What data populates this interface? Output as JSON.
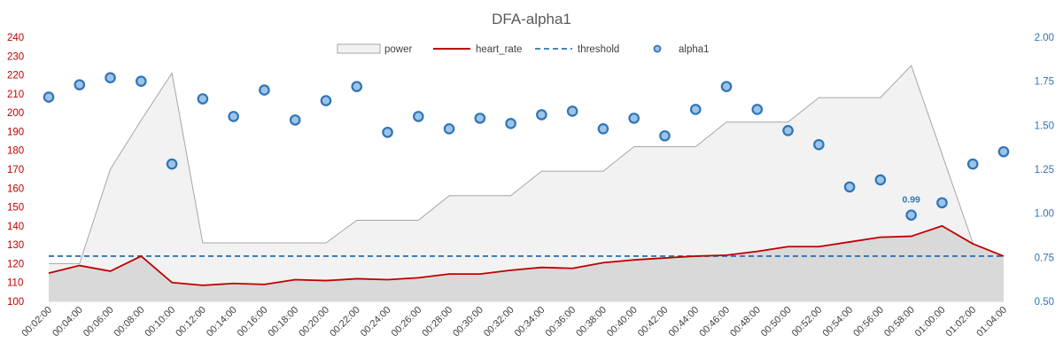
{
  "chart_data": {
    "type": "line",
    "title": "DFA-alpha1",
    "x": [
      "00:02:00",
      "00:04:00",
      "00:06:00",
      "00:08:00",
      "00:10:00",
      "00:12:00",
      "00:14:00",
      "00:16:00",
      "00:18:00",
      "00:20:00",
      "00:22:00",
      "00:24:00",
      "00:26:00",
      "00:28:00",
      "00:30:00",
      "00:32:00",
      "00:34:00",
      "00:36:00",
      "00:38:00",
      "00:40:00",
      "00:42:00",
      "00:44:00",
      "00:46:00",
      "00:48:00",
      "00:50:00",
      "00:52:00",
      "00:54:00",
      "00:56:00",
      "00:58:00",
      "01:00:00",
      "01:02:00",
      "01:04:00"
    ],
    "y_left": {
      "ylim": [
        100,
        240
      ],
      "ticks": [
        100,
        110,
        120,
        130,
        140,
        150,
        160,
        170,
        180,
        190,
        200,
        210,
        220,
        230,
        240
      ]
    },
    "y_right": {
      "ylim": [
        0.5,
        2.0
      ],
      "ticks": [
        "0.50",
        "0.75",
        "1.00",
        "1.25",
        "1.50",
        "1.75",
        "2.00"
      ]
    },
    "legend_position": "top",
    "grid": false,
    "series": [
      {
        "name": "power",
        "kind": "area",
        "axis": "left",
        "color": "#f2f2f2",
        "stroke": "#a6a6a6",
        "points": [
          [
            0,
            120
          ],
          [
            1,
            120
          ],
          [
            2,
            170
          ],
          [
            3,
            196
          ],
          [
            4,
            221
          ],
          [
            5,
            131
          ],
          [
            6,
            131
          ],
          [
            7,
            131
          ],
          [
            8,
            131
          ],
          [
            9,
            131
          ],
          [
            10,
            143
          ],
          [
            11,
            143
          ],
          [
            12,
            143
          ],
          [
            13,
            156
          ],
          [
            14,
            156
          ],
          [
            15,
            156
          ],
          [
            16,
            169
          ],
          [
            17,
            169
          ],
          [
            18,
            169
          ],
          [
            19,
            182
          ],
          [
            20,
            182
          ],
          [
            21,
            182
          ],
          [
            22,
            195
          ],
          [
            23,
            195
          ],
          [
            24,
            195
          ],
          [
            25,
            208
          ],
          [
            26,
            208
          ],
          [
            27,
            208
          ],
          [
            28,
            225
          ],
          [
            29,
            178
          ],
          [
            30,
            131
          ],
          [
            31,
            116
          ]
        ]
      },
      {
        "name": "heart_rate",
        "kind": "line",
        "axis": "left",
        "color": "#c00000",
        "values": [
          115,
          119,
          116,
          124,
          110,
          108.5,
          109.5,
          109,
          111.5,
          111,
          112,
          111.5,
          112.5,
          114.5,
          114.5,
          116.5,
          118,
          117.5,
          120.5,
          122,
          123,
          124,
          124.5,
          126.5,
          129,
          129,
          131.5,
          134,
          134.5,
          140,
          130.5,
          124
        ]
      },
      {
        "name": "threshold",
        "kind": "dashed-line",
        "axis": "left",
        "color": "#2e75b6",
        "value": 124
      },
      {
        "name": "alpha1",
        "kind": "scatter",
        "axis": "right",
        "color": "#2e75b6",
        "fill": "#9dc3e6",
        "values": [
          1.66,
          1.73,
          1.77,
          1.75,
          1.28,
          1.65,
          1.55,
          1.7,
          1.53,
          1.64,
          1.72,
          1.46,
          1.55,
          1.48,
          1.54,
          1.51,
          1.56,
          1.58,
          1.48,
          1.54,
          1.44,
          1.59,
          1.72,
          1.59,
          1.47,
          1.39,
          1.15,
          1.19,
          0.99,
          1.06,
          1.28,
          1.35
        ]
      }
    ],
    "annotations": [
      {
        "series": "alpha1",
        "index": 28,
        "text": "0.99"
      }
    ]
  }
}
